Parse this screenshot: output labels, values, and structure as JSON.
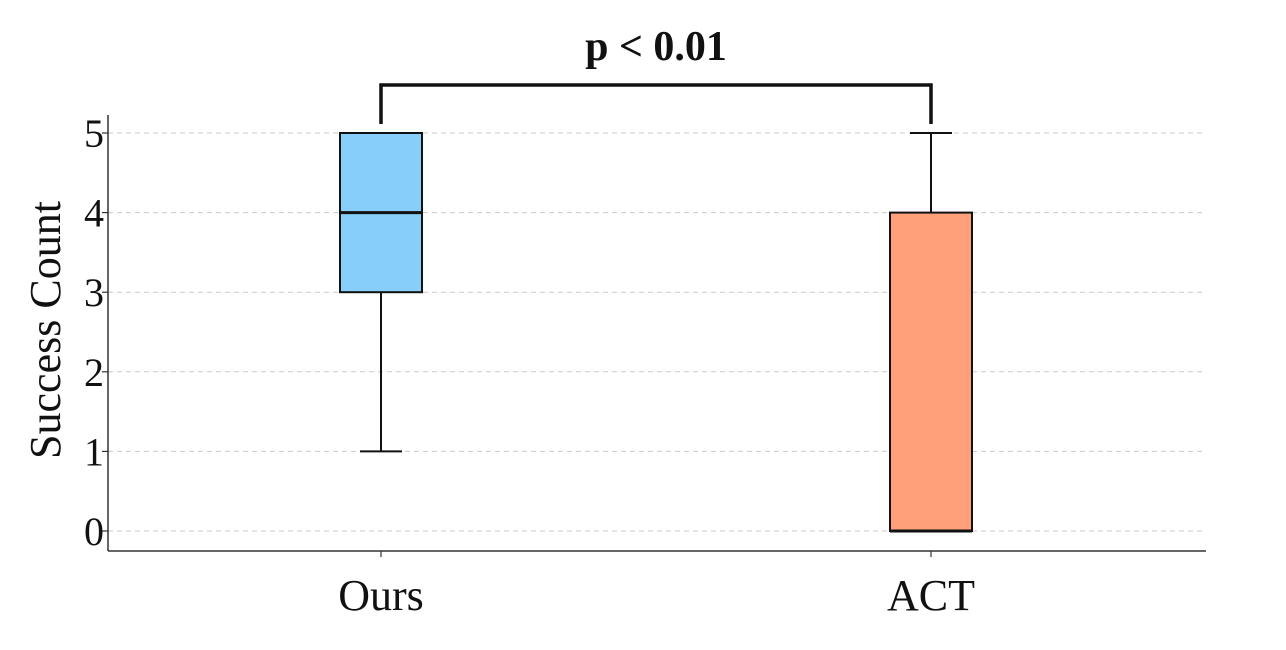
{
  "chart_data": {
    "type": "box",
    "title": "",
    "xlabel": "",
    "ylabel": "Success Count",
    "ylim": [
      -0.25,
      5.25
    ],
    "yticks": [
      0,
      1,
      2,
      3,
      4,
      5
    ],
    "grid": true,
    "grid_axis": "y",
    "categories": [
      "Ours",
      "ACT"
    ],
    "boxes": [
      {
        "label": "Ours",
        "min": 1,
        "q1": 3,
        "median": 4,
        "q3": 5,
        "max": 5,
        "color": "#87CEFA"
      },
      {
        "label": "ACT",
        "min": 0,
        "q1": 0,
        "median": 0,
        "q3": 4,
        "max": 5,
        "color": "#FFA07A"
      }
    ],
    "annotation": {
      "text": "p < 0.01",
      "between": [
        "Ours",
        "ACT"
      ]
    }
  }
}
